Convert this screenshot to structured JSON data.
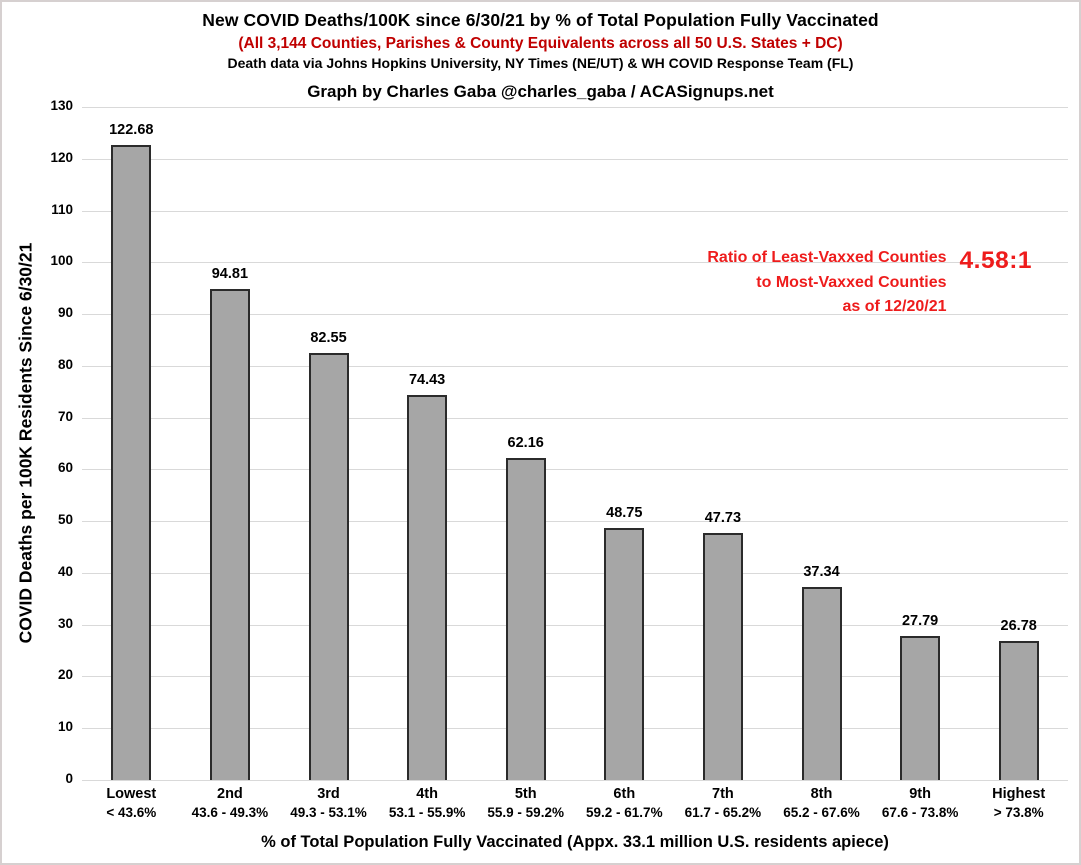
{
  "header": {
    "title": "New COVID Deaths/100K since 6/30/21 by % of Total Population Fully Vaccinated",
    "subtitle": "(All 3,144 Counties, Parishes & County Equivalents across all 50 U.S. States + DC)",
    "source_line": "Death data via Johns Hopkins University, NY Times (NE/UT) & WH COVID Response Team (FL)",
    "credit_line": "Graph by Charles Gaba @charles_gaba / ACASignups.net"
  },
  "annotation": {
    "lines": [
      "Ratio of Least-Vaxxed Counties",
      "to Most-Vaxxed Counties",
      "as of 12/20/21"
    ],
    "ratio_value": "4.58:1"
  },
  "colors": {
    "subtitle_red": "#c00000",
    "annotation_red": "#ee1c1c",
    "bar_fill": "#a6a6a6",
    "bar_border": "#2b2b2b",
    "gridline": "#d9d9d9",
    "text": "#000000"
  },
  "chart_data": {
    "type": "bar",
    "title": "New COVID Deaths/100K since 6/30/21 by % of Total Population Fully Vaccinated",
    "categories": [
      {
        "rank": "Lowest",
        "range": "< 43.6%"
      },
      {
        "rank": "2nd",
        "range": "43.6 - 49.3%"
      },
      {
        "rank": "3rd",
        "range": "49.3 - 53.1%"
      },
      {
        "rank": "4th",
        "range": "53.1 - 55.9%"
      },
      {
        "rank": "5th",
        "range": "55.9 - 59.2%"
      },
      {
        "rank": "6th",
        "range": "59.2 - 61.7%"
      },
      {
        "rank": "7th",
        "range": "61.7 - 65.2%"
      },
      {
        "rank": "8th",
        "range": "65.2 - 67.6%"
      },
      {
        "rank": "9th",
        "range": "67.6 - 73.8%"
      },
      {
        "rank": "Highest",
        "range": "> 73.8%"
      }
    ],
    "values": [
      122.68,
      94.81,
      82.55,
      74.43,
      62.16,
      48.75,
      47.73,
      37.34,
      27.79,
      26.78
    ],
    "xlabel": "% of Total Population Fully Vaccinated (Appx. 33.1 million U.S. residents apiece)",
    "ylabel": "COVID Deaths per 100K Residents Since 6/30/21",
    "ylim": [
      0,
      130
    ],
    "ytick_step": 10,
    "grid": "horizontal",
    "legend": "none"
  }
}
